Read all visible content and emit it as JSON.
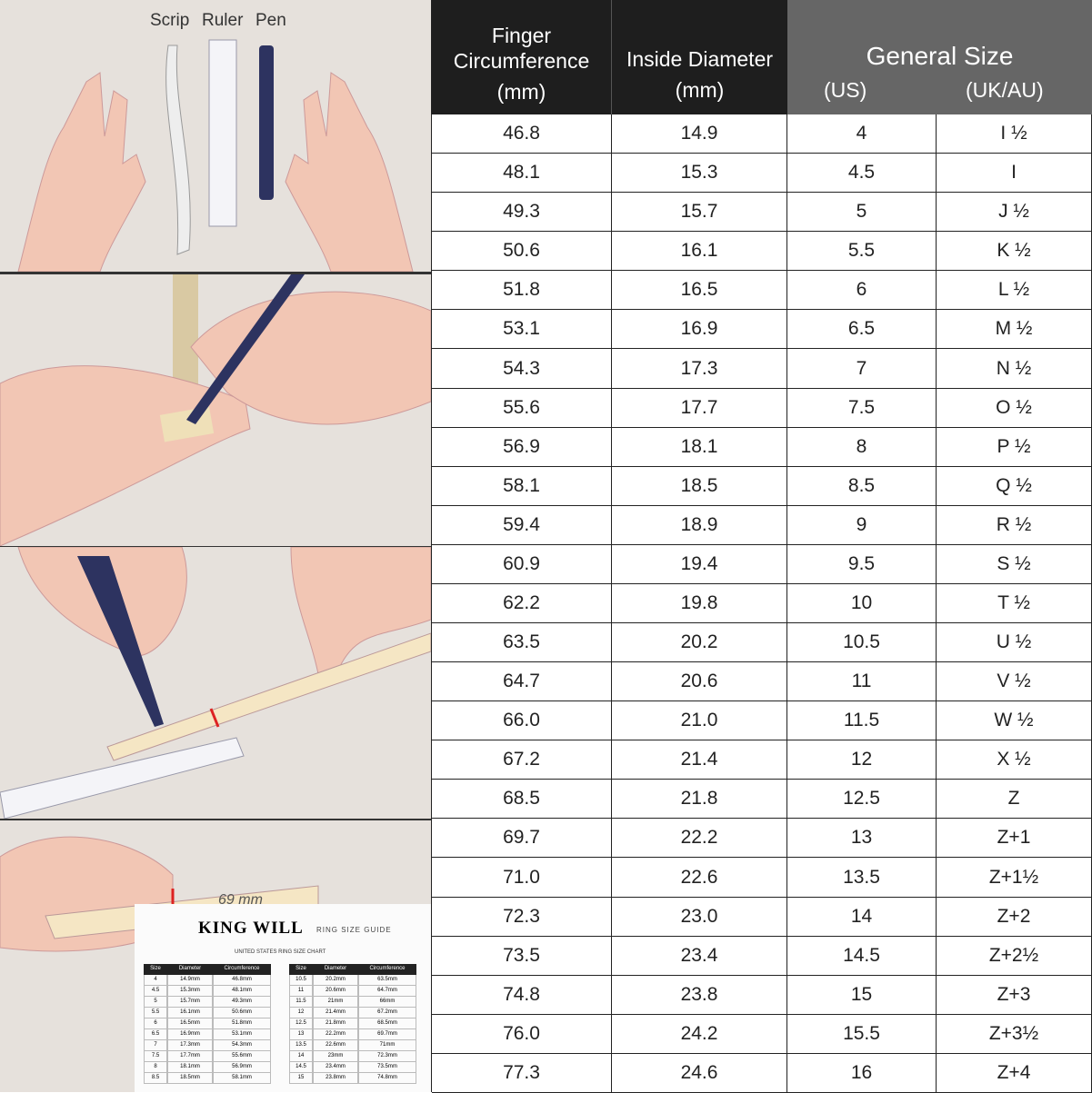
{
  "illustrations": {
    "tools": [
      "Scrip",
      "Ruler",
      "Pen"
    ],
    "brand": "KING WILL",
    "strip_mark": "69 mm",
    "sheet": {
      "logo": "KING WILL",
      "guide": "RING SIZE GUIDE",
      "subtitle": "UNITED STATES RING SIZE CHART",
      "headers": [
        "Size",
        "Diameter",
        "Circumference"
      ],
      "left_rows": [
        [
          "4",
          "14.9mm",
          "46.8mm"
        ],
        [
          "4.5",
          "15.3mm",
          "48.1mm"
        ],
        [
          "5",
          "15.7mm",
          "49.3mm"
        ],
        [
          "5.5",
          "16.1mm",
          "50.6mm"
        ],
        [
          "6",
          "16.5mm",
          "51.8mm"
        ],
        [
          "6.5",
          "16.9mm",
          "53.1mm"
        ],
        [
          "7",
          "17.3mm",
          "54.3mm"
        ],
        [
          "7.5",
          "17.7mm",
          "55.6mm"
        ],
        [
          "8",
          "18.1mm",
          "56.9mm"
        ],
        [
          "8.5",
          "18.5mm",
          "58.1mm"
        ]
      ],
      "right_rows": [
        [
          "10.5",
          "20.2mm",
          "63.5mm"
        ],
        [
          "11",
          "20.6mm",
          "64.7mm"
        ],
        [
          "11.5",
          "21mm",
          "66mm"
        ],
        [
          "12",
          "21.4mm",
          "67.2mm"
        ],
        [
          "12.5",
          "21.8mm",
          "68.5mm"
        ],
        [
          "13",
          "22.2mm",
          "69.7mm"
        ],
        [
          "13.5",
          "22.6mm",
          "71mm"
        ],
        [
          "14",
          "23mm",
          "72.3mm"
        ],
        [
          "14.5",
          "23.4mm",
          "73.5mm"
        ],
        [
          "15",
          "23.8mm",
          "74.8mm"
        ]
      ]
    }
  },
  "table": {
    "headers": {
      "circ": [
        "Finger",
        "Circumference",
        "(mm)"
      ],
      "diam": [
        "Inside Diameter",
        "(mm)"
      ],
      "general": "General Size",
      "us": "(US)",
      "uk": "(UK/AU)"
    },
    "rows": [
      [
        "46.8",
        "14.9",
        "4",
        "I ½"
      ],
      [
        "48.1",
        "15.3",
        "4.5",
        "I"
      ],
      [
        "49.3",
        "15.7",
        "5",
        "J ½"
      ],
      [
        "50.6",
        "16.1",
        "5.5",
        "K ½"
      ],
      [
        "51.8",
        "16.5",
        "6",
        "L ½"
      ],
      [
        "53.1",
        "16.9",
        "6.5",
        "M ½"
      ],
      [
        "54.3",
        "17.3",
        "7",
        "N ½"
      ],
      [
        "55.6",
        "17.7",
        "7.5",
        "O ½"
      ],
      [
        "56.9",
        "18.1",
        "8",
        "P ½"
      ],
      [
        "58.1",
        "18.5",
        "8.5",
        "Q ½"
      ],
      [
        "59.4",
        "18.9",
        "9",
        "R ½"
      ],
      [
        "60.9",
        "19.4",
        "9.5",
        "S ½"
      ],
      [
        "62.2",
        "19.8",
        "10",
        "T ½"
      ],
      [
        "63.5",
        "20.2",
        "10.5",
        "U ½"
      ],
      [
        "64.7",
        "20.6",
        "11",
        "V ½"
      ],
      [
        "66.0",
        "21.0",
        "11.5",
        "W ½"
      ],
      [
        "67.2",
        "21.4",
        "12",
        "X ½"
      ],
      [
        "68.5",
        "21.8",
        "12.5",
        "Z"
      ],
      [
        "69.7",
        "22.2",
        "13",
        "Z+1"
      ],
      [
        "71.0",
        "22.6",
        "13.5",
        "Z+1½"
      ],
      [
        "72.3",
        "23.0",
        "14",
        "Z+2"
      ],
      [
        "73.5",
        "23.4",
        "14.5",
        "Z+2½"
      ],
      [
        "74.8",
        "23.8",
        "15",
        "Z+3"
      ],
      [
        "76.0",
        "24.2",
        "15.5",
        "Z+3½"
      ],
      [
        "77.3",
        "24.6",
        "16",
        "Z+4"
      ]
    ]
  },
  "colors": {
    "header_dark": "#1e1e1e",
    "header_gray": "#666666",
    "skin": "#f2c6b4",
    "wood": "#e6e1dc"
  }
}
